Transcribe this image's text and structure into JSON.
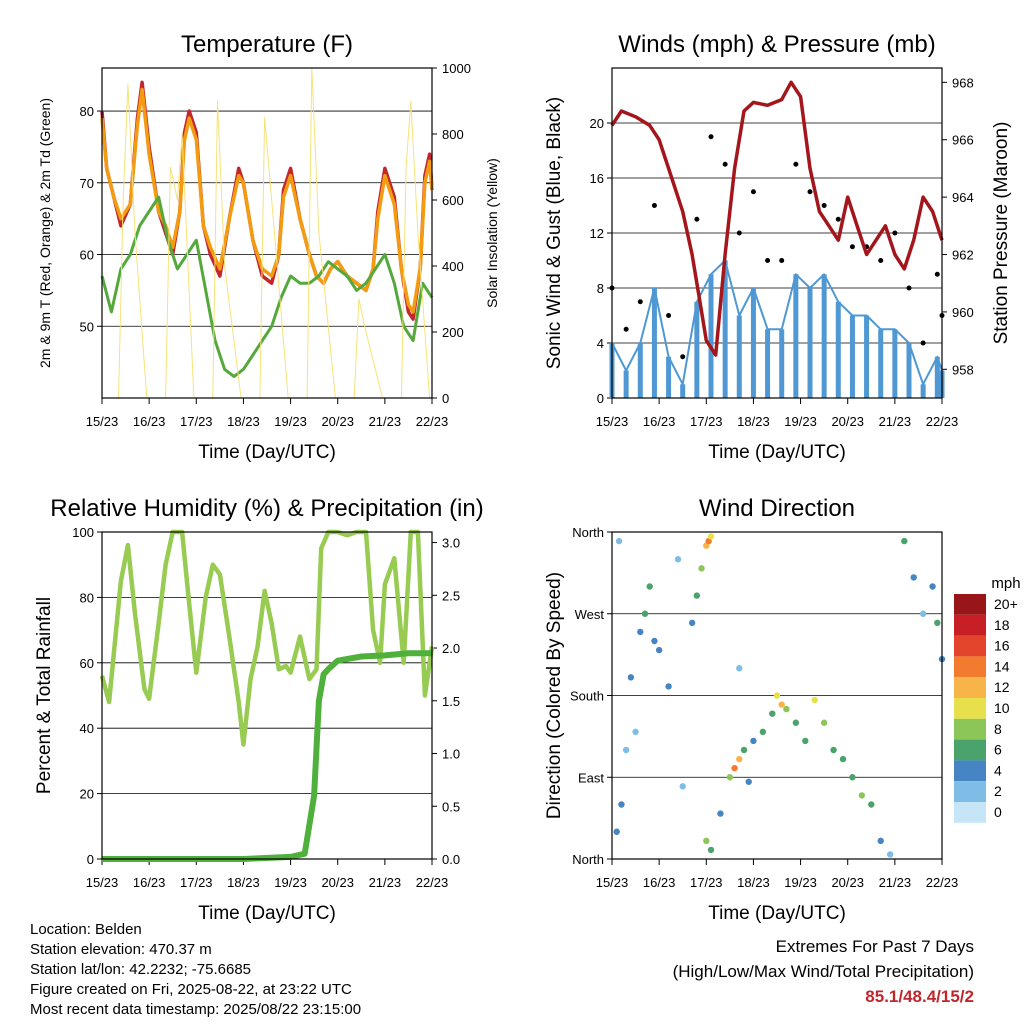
{
  "colors": {
    "temp2m": "#c1272d",
    "temp9m": "#f39c12",
    "dewpoint": "#55a83b",
    "solar": "#f7e27a",
    "wind": "#4f98d4",
    "gust": "#000000",
    "pressure": "#a3161c",
    "rh": "#97cb51",
    "precip": "#4fb13b",
    "extremes": "#c0272d"
  },
  "info": {
    "location": "Location: Belden",
    "elevation": "Station elevation: 470.37 m",
    "latlon": "Station lat/lon: 42.2232; -75.6685",
    "created": "Figure created on Fri, 2025-08-22, at 23:22 UTC",
    "recent": "Most recent data timestamp: 2025/08/22 23:15:00"
  },
  "extremes": {
    "title": "Extremes For Past 7 Days",
    "subtitle": "(High/Low/Max Wind/Total Precipitation)",
    "values": "85.1/48.4/15/2"
  },
  "chart_data": [
    {
      "type": "line",
      "title": "Temperature (F)",
      "xlabel": "Time (Day/UTC)",
      "ylabel": "2m & 9m T (Red, Orange) & 2m Td (Green)",
      "y2label": "Solar Insolation (Yellow)",
      "x_ticks": [
        "15/23",
        "16/23",
        "17/23",
        "18/23",
        "19/23",
        "20/23",
        "21/23",
        "22/23"
      ],
      "xlim": [
        0,
        7
      ],
      "ylim": [
        40,
        86
      ],
      "y_ticks": [
        50,
        60,
        70,
        80
      ],
      "y2lim": [
        0,
        1000
      ],
      "y2_ticks": [
        0,
        200,
        400,
        600,
        800,
        1000
      ],
      "grid": true,
      "series": [
        {
          "key": "temp2m",
          "x": [
            0,
            0.1,
            0.25,
            0.4,
            0.6,
            0.75,
            0.85,
            1.0,
            1.2,
            1.35,
            1.5,
            1.65,
            1.75,
            1.85,
            2.0,
            2.15,
            2.3,
            2.5,
            2.7,
            2.9,
            3.0,
            3.2,
            3.4,
            3.6,
            3.75,
            3.85,
            4.0,
            4.2,
            4.4,
            4.55,
            4.7,
            4.85,
            5.0,
            5.2,
            5.4,
            5.6,
            5.75,
            5.85,
            6.0,
            6.2,
            6.35,
            6.5,
            6.6,
            6.75,
            6.85,
            6.95,
            7.0
          ],
          "y": [
            80,
            72,
            68,
            64,
            67,
            79,
            84,
            75,
            66,
            63,
            60,
            66,
            77,
            80,
            77,
            64,
            60,
            57,
            65,
            72,
            70,
            62,
            57,
            56,
            60,
            69,
            72,
            65,
            60,
            57,
            56,
            58,
            59,
            57,
            56,
            55,
            58,
            66,
            72,
            68,
            58,
            52,
            51,
            58,
            71,
            74,
            69
          ]
        },
        {
          "key": "temp9m",
          "x": [
            0,
            0.1,
            0.25,
            0.4,
            0.6,
            0.75,
            0.85,
            1.0,
            1.2,
            1.35,
            1.5,
            1.65,
            1.75,
            1.85,
            2.0,
            2.15,
            2.3,
            2.5,
            2.7,
            2.9,
            3.0,
            3.2,
            3.4,
            3.6,
            3.75,
            3.85,
            4.0,
            4.2,
            4.4,
            4.55,
            4.7,
            4.85,
            5.0,
            5.2,
            5.4,
            5.6,
            5.75,
            5.85,
            6.0,
            6.2,
            6.35,
            6.5,
            6.6,
            6.75,
            6.85,
            6.95,
            7.0
          ],
          "y": [
            79,
            72,
            68,
            65,
            67,
            78,
            83,
            74,
            66,
            64,
            61,
            66,
            76,
            79,
            76,
            64,
            61,
            58,
            65,
            71,
            70,
            62,
            58,
            57,
            60,
            68,
            71,
            65,
            60,
            57,
            56,
            58,
            59,
            57,
            56,
            55,
            58,
            65,
            71,
            67,
            58,
            53,
            52,
            58,
            70,
            73,
            69
          ]
        },
        {
          "key": "dewpoint",
          "x": [
            0,
            0.2,
            0.4,
            0.6,
            0.8,
            1.0,
            1.2,
            1.4,
            1.6,
            1.8,
            2.0,
            2.2,
            2.4,
            2.6,
            2.8,
            3.0,
            3.2,
            3.4,
            3.6,
            3.8,
            4.0,
            4.2,
            4.4,
            4.6,
            4.8,
            5.0,
            5.2,
            5.4,
            5.6,
            5.8,
            6.0,
            6.2,
            6.4,
            6.6,
            6.8,
            7.0
          ],
          "y": [
            57,
            52,
            58,
            60,
            64,
            66,
            68,
            62,
            58,
            60,
            62,
            55,
            48,
            44,
            43,
            44,
            46,
            48,
            50,
            54,
            57,
            56,
            56,
            57,
            59,
            58,
            57,
            55,
            56,
            58,
            60,
            56,
            50,
            48,
            56,
            54
          ]
        },
        {
          "key": "solar",
          "x": [
            0,
            0.35,
            0.45,
            0.55,
            0.7,
            0.95,
            1.1,
            1.35,
            1.45,
            1.6,
            1.7,
            1.95,
            2.1,
            2.35,
            2.45,
            2.6,
            2.95,
            3.35,
            3.45,
            3.6,
            3.95,
            4.35,
            4.45,
            4.6,
            4.95,
            5.35,
            5.45,
            5.6,
            5.95,
            6.35,
            6.45,
            6.55,
            6.7,
            6.95,
            7.0
          ],
          "y": [
            0,
            0,
            600,
            950,
            500,
            0,
            0,
            0,
            700,
            600,
            800,
            0,
            0,
            0,
            900,
            400,
            0,
            0,
            850,
            600,
            0,
            0,
            1000,
            500,
            0,
            0,
            300,
            200,
            0,
            0,
            700,
            900,
            500,
            0,
            0
          ]
        }
      ]
    },
    {
      "type": "scatter",
      "title": "Winds (mph) & Pressure (mb)",
      "xlabel": "Time (Day/UTC)",
      "ylabel": "Sonic Wind & Gust (Blue, Black)",
      "y2label": "Station Pressure (Maroon)",
      "x_ticks": [
        "15/23",
        "16/23",
        "17/23",
        "18/23",
        "19/23",
        "20/23",
        "21/23",
        "22/23"
      ],
      "xlim": [
        0,
        7
      ],
      "ylim": [
        0,
        24
      ],
      "y_ticks": [
        0,
        4,
        8,
        12,
        16,
        20
      ],
      "y2lim": [
        957,
        968.5
      ],
      "y2_ticks": [
        958,
        960,
        962,
        964,
        966,
        968
      ],
      "grid": true,
      "series": [
        {
          "key": "wind",
          "x": [
            0,
            0.3,
            0.6,
            0.9,
            1.2,
            1.5,
            1.8,
            2.1,
            2.4,
            2.7,
            3.0,
            3.3,
            3.6,
            3.9,
            4.2,
            4.5,
            4.8,
            5.1,
            5.4,
            5.7,
            6.0,
            6.3,
            6.6,
            6.9,
            7.0
          ],
          "y": [
            4,
            2,
            4,
            8,
            3,
            1,
            7,
            9,
            10,
            6,
            8,
            5,
            5,
            9,
            8,
            9,
            7,
            6,
            6,
            5,
            5,
            4,
            1,
            3,
            2
          ]
        },
        {
          "key": "gust",
          "x": [
            0,
            0.3,
            0.6,
            0.9,
            1.2,
            1.5,
            1.8,
            2.1,
            2.4,
            2.7,
            3.0,
            3.3,
            3.6,
            3.9,
            4.2,
            4.5,
            4.8,
            5.1,
            5.4,
            5.7,
            6.0,
            6.3,
            6.6,
            6.9,
            7.0
          ],
          "y": [
            8,
            5,
            7,
            14,
            6,
            3,
            13,
            19,
            17,
            12,
            15,
            10,
            10,
            17,
            15,
            14,
            13,
            11,
            11,
            10,
            12,
            8,
            4,
            9,
            6
          ]
        },
        {
          "key": "pressure",
          "x": [
            0,
            0.2,
            0.5,
            0.8,
            1.0,
            1.2,
            1.5,
            1.7,
            1.9,
            2.0,
            2.2,
            2.4,
            2.6,
            2.8,
            3.0,
            3.3,
            3.6,
            3.8,
            4.0,
            4.2,
            4.4,
            4.6,
            4.8,
            5.0,
            5.2,
            5.4,
            5.6,
            5.8,
            6.0,
            6.2,
            6.4,
            6.6,
            6.8,
            7.0
          ],
          "y": [
            966.5,
            967,
            966.8,
            966.5,
            966,
            965,
            963.5,
            962,
            960,
            959,
            958.5,
            962,
            965,
            967,
            967.3,
            967.2,
            967.4,
            968,
            967.5,
            965,
            963.5,
            963,
            962.5,
            964,
            963,
            962,
            962.5,
            963,
            962,
            961.5,
            962.5,
            964,
            963.5,
            962.5
          ]
        }
      ]
    },
    {
      "type": "line",
      "title": "Relative Humidity (%) & Precipitation (in)",
      "xlabel": "Time (Day/UTC)",
      "ylabel": "Percent & Total Rainfall",
      "x_ticks": [
        "15/23",
        "16/23",
        "17/23",
        "18/23",
        "19/23",
        "20/23",
        "21/23",
        "22/23"
      ],
      "xlim": [
        0,
        7
      ],
      "ylim": [
        0,
        100
      ],
      "y_ticks": [
        0,
        20,
        40,
        60,
        80,
        100
      ],
      "y2lim": [
        0,
        3.1
      ],
      "y2_ticks": [
        "0.0",
        "0.5",
        "1.0",
        "1.5",
        "2.0",
        "2.5",
        "3.0"
      ],
      "grid": true,
      "series": [
        {
          "key": "rh",
          "x": [
            0,
            0.15,
            0.4,
            0.55,
            0.7,
            0.9,
            1.0,
            1.2,
            1.35,
            1.5,
            1.7,
            1.85,
            2.0,
            2.2,
            2.35,
            2.5,
            2.7,
            2.9,
            3.0,
            3.15,
            3.3,
            3.45,
            3.6,
            3.75,
            3.9,
            4.0,
            4.2,
            4.4,
            4.55,
            4.65,
            4.8,
            5.0,
            5.2,
            5.4,
            5.6,
            5.75,
            5.9,
            6.0,
            6.2,
            6.4,
            6.55,
            6.7,
            6.85,
            7.0
          ],
          "y": [
            56,
            48,
            85,
            96,
            75,
            52,
            49,
            72,
            90,
            100,
            100,
            78,
            57,
            80,
            90,
            87,
            68,
            48,
            35,
            55,
            65,
            82,
            72,
            58,
            59,
            57,
            68,
            55,
            58,
            95,
            100,
            100,
            99,
            100,
            100,
            70,
            60,
            84,
            92,
            60,
            100,
            100,
            50,
            65
          ]
        },
        {
          "key": "precip",
          "x": [
            0,
            1,
            2,
            3,
            4,
            4.3,
            4.5,
            4.6,
            4.7,
            4.8,
            5.0,
            5.5,
            6,
            6.5,
            7.0
          ],
          "y": [
            0,
            0,
            0,
            0,
            0.02,
            0.05,
            0.6,
            1.5,
            1.75,
            1.8,
            1.88,
            1.92,
            1.93,
            1.95,
            1.95
          ]
        }
      ]
    },
    {
      "type": "scatter",
      "title": "Wind Direction",
      "xlabel": "Time (Day/UTC)",
      "ylabel": "Direction (Colored By Speed)",
      "x_ticks": [
        "15/23",
        "16/23",
        "17/23",
        "18/23",
        "19/23",
        "20/23",
        "21/23",
        "22/23"
      ],
      "xlim": [
        0,
        7
      ],
      "ylim": [
        0,
        360
      ],
      "y_ticks": [
        "North",
        "East",
        "South",
        "West",
        "North"
      ],
      "legend_title": "mph",
      "legend_labels": [
        "0",
        "2",
        "4",
        "6",
        "8",
        "10",
        "12",
        "14",
        "16",
        "18",
        "20+"
      ],
      "legend_colors": [
        "#c6e6f7",
        "#7fbce6",
        "#4585c4",
        "#4aa36b",
        "#8cc659",
        "#e8e04a",
        "#f7b449",
        "#f27b30",
        "#e2452c",
        "#c81e25",
        "#981618"
      ],
      "legend_placement": "right",
      "points": [
        {
          "x": 0.1,
          "y": 30,
          "s": 4
        },
        {
          "x": 0.2,
          "y": 60,
          "s": 3
        },
        {
          "x": 0.3,
          "y": 120,
          "s": 2
        },
        {
          "x": 0.15,
          "y": 350,
          "s": 1
        },
        {
          "x": 0.4,
          "y": 200,
          "s": 3
        },
        {
          "x": 0.5,
          "y": 140,
          "s": 2
        },
        {
          "x": 0.6,
          "y": 250,
          "s": 4
        },
        {
          "x": 0.7,
          "y": 270,
          "s": 6
        },
        {
          "x": 0.8,
          "y": 300,
          "s": 5
        },
        {
          "x": 0.9,
          "y": 240,
          "s": 4
        },
        {
          "x": 1.0,
          "y": 230,
          "s": 3
        },
        {
          "x": 1.2,
          "y": 190,
          "s": 4
        },
        {
          "x": 1.5,
          "y": 80,
          "s": 2
        },
        {
          "x": 1.4,
          "y": 330,
          "s": 1
        },
        {
          "x": 1.7,
          "y": 260,
          "s": 3
        },
        {
          "x": 1.8,
          "y": 290,
          "s": 6
        },
        {
          "x": 1.9,
          "y": 320,
          "s": 8
        },
        {
          "x": 2.0,
          "y": 345,
          "s": 12
        },
        {
          "x": 2.05,
          "y": 350,
          "s": 14
        },
        {
          "x": 2.1,
          "y": 355,
          "s": 10
        },
        {
          "x": 2.0,
          "y": 20,
          "s": 8
        },
        {
          "x": 2.1,
          "y": 10,
          "s": 6
        },
        {
          "x": 2.3,
          "y": 50,
          "s": 4
        },
        {
          "x": 2.5,
          "y": 90,
          "s": 8
        },
        {
          "x": 2.6,
          "y": 100,
          "s": 14
        },
        {
          "x": 2.7,
          "y": 110,
          "s": 12
        },
        {
          "x": 2.8,
          "y": 120,
          "s": 6
        },
        {
          "x": 2.9,
          "y": 85,
          "s": 4
        },
        {
          "x": 2.7,
          "y": 210,
          "s": 1
        },
        {
          "x": 3.0,
          "y": 130,
          "s": 3
        },
        {
          "x": 3.2,
          "y": 140,
          "s": 5
        },
        {
          "x": 3.4,
          "y": 160,
          "s": 6
        },
        {
          "x": 3.5,
          "y": 180,
          "s": 10
        },
        {
          "x": 3.6,
          "y": 170,
          "s": 12
        },
        {
          "x": 3.7,
          "y": 165,
          "s": 8
        },
        {
          "x": 3.9,
          "y": 150,
          "s": 6
        },
        {
          "x": 4.1,
          "y": 130,
          "s": 5
        },
        {
          "x": 4.3,
          "y": 175,
          "s": 10
        },
        {
          "x": 4.5,
          "y": 150,
          "s": 8
        },
        {
          "x": 4.7,
          "y": 120,
          "s": 6
        },
        {
          "x": 4.9,
          "y": 110,
          "s": 5
        },
        {
          "x": 5.1,
          "y": 90,
          "s": 6
        },
        {
          "x": 5.3,
          "y": 70,
          "s": 8
        },
        {
          "x": 5.5,
          "y": 60,
          "s": 6
        },
        {
          "x": 5.7,
          "y": 20,
          "s": 4
        },
        {
          "x": 5.9,
          "y": 5,
          "s": 2
        },
        {
          "x": 6.2,
          "y": 350,
          "s": 6
        },
        {
          "x": 6.4,
          "y": 310,
          "s": 4
        },
        {
          "x": 6.6,
          "y": 270,
          "s": 2
        },
        {
          "x": 6.8,
          "y": 300,
          "s": 4
        },
        {
          "x": 6.9,
          "y": 260,
          "s": 5
        },
        {
          "x": 7.0,
          "y": 220,
          "s": 3
        }
      ]
    }
  ]
}
